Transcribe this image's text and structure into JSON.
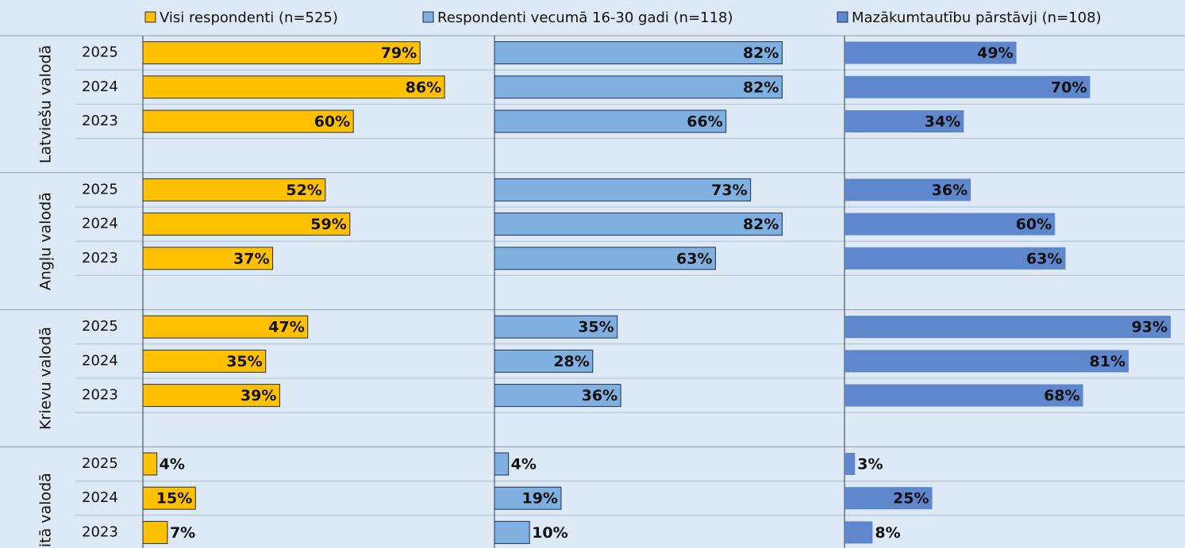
{
  "chart_data": {
    "type": "bar",
    "orientation": "horizontal",
    "xlim": [
      0,
      100
    ],
    "groups": [
      {
        "name": "Latviešu valodā",
        "categories": [
          "2025",
          "2024",
          "2023"
        ]
      },
      {
        "name": "Angļu valodā",
        "categories": [
          "2025",
          "2024",
          "2023"
        ]
      },
      {
        "name": "Krievu valodā",
        "categories": [
          "2025",
          "2024",
          "2023"
        ]
      },
      {
        "name": "Citā valodā",
        "categories": [
          "2025",
          "2024",
          "2023"
        ]
      }
    ],
    "series": [
      {
        "name": "Visi respondenti (n=525)",
        "color": "#FFC000",
        "edgecolor": "#1f3150",
        "values": [
          [
            79,
            86,
            60
          ],
          [
            52,
            59,
            37
          ],
          [
            47,
            35,
            39
          ],
          [
            4,
            15,
            7
          ]
        ],
        "value_labels": [
          [
            "79%",
            "86%",
            "60%"
          ],
          [
            "52%",
            "59%",
            "37%"
          ],
          [
            "47%",
            "35%",
            "39%"
          ],
          [
            "4%",
            "15%",
            "7%"
          ]
        ]
      },
      {
        "name": "Respondenti vecumā 16-30 gadi (n=118)",
        "color": "#7FB0E0",
        "edgecolor": "#1f3150",
        "values": [
          [
            82,
            82,
            66
          ],
          [
            73,
            82,
            63
          ],
          [
            35,
            28,
            36
          ],
          [
            4,
            19,
            10
          ]
        ],
        "value_labels": [
          [
            "82%",
            "82%",
            "66%"
          ],
          [
            "73%",
            "82%",
            "63%"
          ],
          [
            "35%",
            "28%",
            "36%"
          ],
          [
            "4%",
            "19%",
            "10%"
          ]
        ]
      },
      {
        "name": "Mazākumtautību pārstāvji (n=108)",
        "color": "#5E87CD",
        "values": [
          [
            49,
            70,
            34
          ],
          [
            36,
            60,
            63
          ],
          [
            93,
            81,
            68
          ],
          [
            3,
            25,
            8
          ]
        ],
        "value_labels": [
          [
            "49%",
            "70%",
            "34%"
          ],
          [
            "36%",
            "60%",
            "63%"
          ],
          [
            "93%",
            "81%",
            "68%"
          ],
          [
            "3%",
            "25%",
            "8%"
          ]
        ]
      }
    ]
  }
}
